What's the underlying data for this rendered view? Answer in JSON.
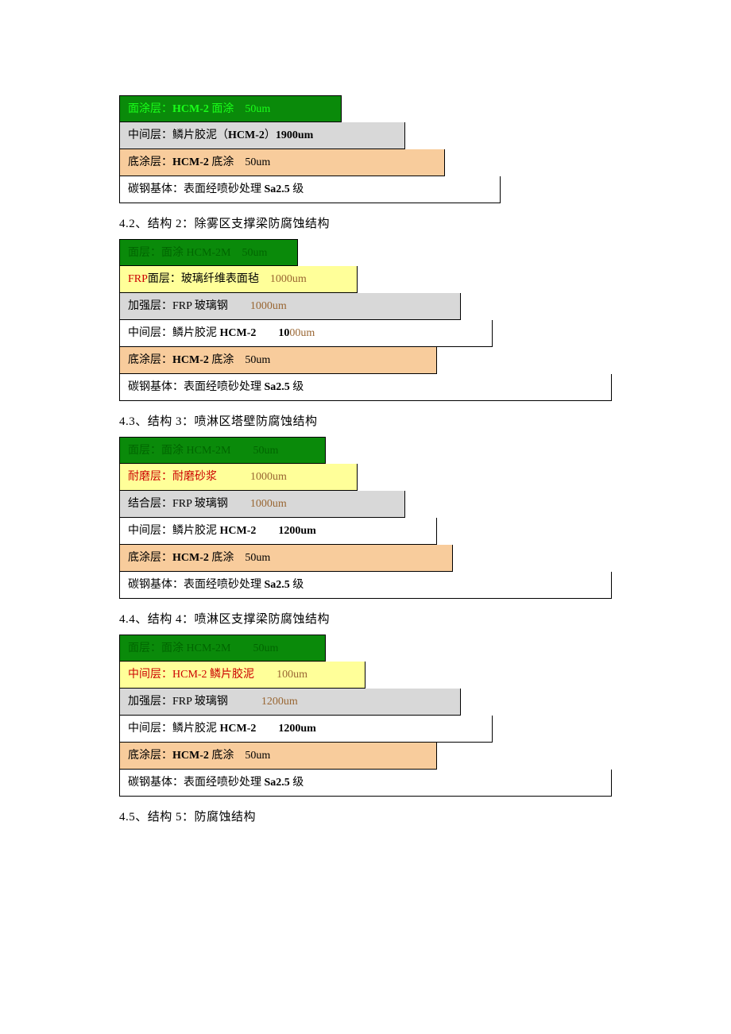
{
  "structures": [
    {
      "layers": [
        {
          "text_html": "面涂层：<b>HCM-2</b> 面涂　50um",
          "bg": "#0a8a0a",
          "fg": "#1aff1a",
          "widthPx": 280
        },
        {
          "text_html": "中间层：鳞片胶泥（<b>HCM-2</b>）<b>1900um</b>",
          "bg": "#d8d8d8",
          "fg": "#000000",
          "widthPx": 360
        },
        {
          "text_html": "底涂层：<b>HCM-2</b> 底涂　50um",
          "bg": "#f8cc9c",
          "fg": "#000000",
          "widthPx": 410
        },
        {
          "text_html": "碳钢基体：表面经喷砂处理 <b>Sa2.5</b> 级",
          "bg": "#ffffff",
          "fg": "#000000",
          "widthPx": 480
        }
      ]
    },
    {
      "heading": "4.2、结构 2：除雾区支撑梁防腐蚀结构",
      "layers": [
        {
          "text_html": "面层：面涂 HCM-2M　50um",
          "bg": "#0a8a0a",
          "fg": "#006600",
          "widthPx": 225
        },
        {
          "text_html": "<span style='color:#cc0000'>FRP</span>面层：玻璃纤维表面毡　<span style='color:#996633'>1000um</span>",
          "bg": "#ffff99",
          "fg": "#000000",
          "widthPx": 300
        },
        {
          "text_html": "加强层：FRP 玻璃钢　　<span style='color:#996633'>1000um</span>",
          "bg": "#d8d8d8",
          "fg": "#000000",
          "widthPx": 430
        },
        {
          "text_html": "中间层：鳞片胶泥 <b>HCM-2</b>　　<b>10</b><span style='color:#996633'>00um</span>",
          "bg": "#ffffff",
          "fg": "#000000",
          "widthPx": 470
        },
        {
          "text_html": "底涂层：<b>HCM-2</b> 底涂　50um",
          "bg": "#f8cc9c",
          "fg": "#000000",
          "widthPx": 400
        },
        {
          "text_html": "碳钢基体：表面经喷砂处理 <b>Sa2.5</b> 级",
          "bg": "#ffffff",
          "fg": "#000000",
          "widthPx": 620
        }
      ]
    },
    {
      "heading": "4.3、结构 3：喷淋区塔壁防腐蚀结构",
      "layers": [
        {
          "text_html": "面层：面涂 HCM-2M　　50um",
          "bg": "#0a8a0a",
          "fg": "#006600",
          "widthPx": 260
        },
        {
          "text_html": "<span style='color:#cc0000'>耐磨层：耐磨砂浆</span>　　　<span style='color:#996633'>1000um</span>",
          "bg": "#ffff99",
          "fg": "#000000",
          "widthPx": 300
        },
        {
          "text_html": "结合层：FRP 玻璃钢　　<span style='color:#996633'>1000um</span>",
          "bg": "#d8d8d8",
          "fg": "#000000",
          "widthPx": 360
        },
        {
          "text_html": "中间层：鳞片胶泥 <b>HCM-2</b>　　<b>1200um</b>",
          "bg": "#ffffff",
          "fg": "#000000",
          "widthPx": 400
        },
        {
          "text_html": "底涂层：<b>HCM-2</b> 底涂　50um",
          "bg": "#f8cc9c",
          "fg": "#000000",
          "widthPx": 420
        },
        {
          "text_html": "碳钢基体：表面经喷砂处理 <b>Sa2.5</b> 级",
          "bg": "#ffffff",
          "fg": "#000000",
          "widthPx": 620
        }
      ]
    },
    {
      "heading": "4.4、结构 4：喷淋区支撑梁防腐蚀结构",
      "layers": [
        {
          "text_html": "面层：面涂 HCM-2M　　50um",
          "bg": "#0a8a0a",
          "fg": "#006600",
          "widthPx": 260
        },
        {
          "text_html": "<span style='color:#cc0000'>中间层：HCM-2 鳞片胶泥</span>　　<span style='color:#996633'>100um</span>",
          "bg": "#ffff99",
          "fg": "#000000",
          "widthPx": 310
        },
        {
          "text_html": "加强层：FRP 玻璃钢　　　<span style='color:#996633'>1200um</span>",
          "bg": "#d8d8d8",
          "fg": "#000000",
          "widthPx": 430
        },
        {
          "text_html": "中间层：鳞片胶泥 <b>HCM-2</b>　　<b>1200um</b>",
          "bg": "#ffffff",
          "fg": "#000000",
          "widthPx": 470
        },
        {
          "text_html": "底涂层：<b>HCM-2</b> 底涂　50um",
          "bg": "#f8cc9c",
          "fg": "#000000",
          "widthPx": 400
        },
        {
          "text_html": "碳钢基体：表面经喷砂处理 <b>Sa2.5</b> 级",
          "bg": "#ffffff",
          "fg": "#000000",
          "widthPx": 620
        }
      ]
    },
    {
      "heading": "4.5、结构 5：防腐蚀结构"
    }
  ]
}
